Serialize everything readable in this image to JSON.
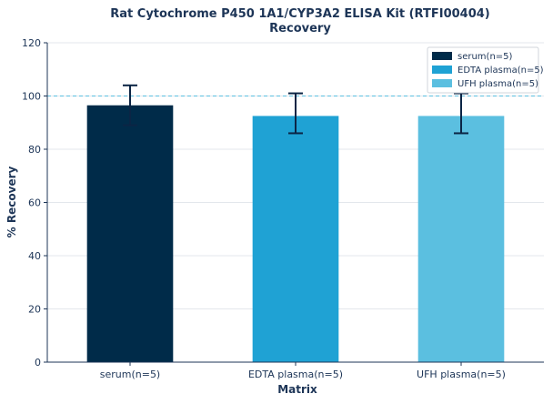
{
  "chart_data": {
    "type": "bar",
    "title_line1": "Rat Cytochrome P450 1A1/CYP3A2 ELISA Kit (RTFI00404)",
    "title_line2": "Recovery",
    "xlabel": "Matrix",
    "ylabel": "% Recovery",
    "categories": [
      "serum(n=5)",
      "EDTA plasma(n=5)",
      "UFH plasma(n=5)"
    ],
    "values": [
      96.5,
      92.5,
      92.5
    ],
    "error_low": [
      89,
      86,
      86
    ],
    "error_high": [
      104,
      101,
      101
    ],
    "ylim": [
      0,
      120
    ],
    "yticks": [
      0,
      20,
      40,
      60,
      80,
      100,
      120
    ],
    "reference_line": 100,
    "grid": true,
    "legend_position": "top-right",
    "legend": [
      "serum(n=5)",
      "EDTA plasma(n=5)",
      "UFH plasma(n=5)"
    ],
    "colors": [
      "#002b49",
      "#1fa2d4",
      "#5bbfe0"
    ],
    "error_color": "#0b2545",
    "reference_color": "#5bbfe0"
  }
}
